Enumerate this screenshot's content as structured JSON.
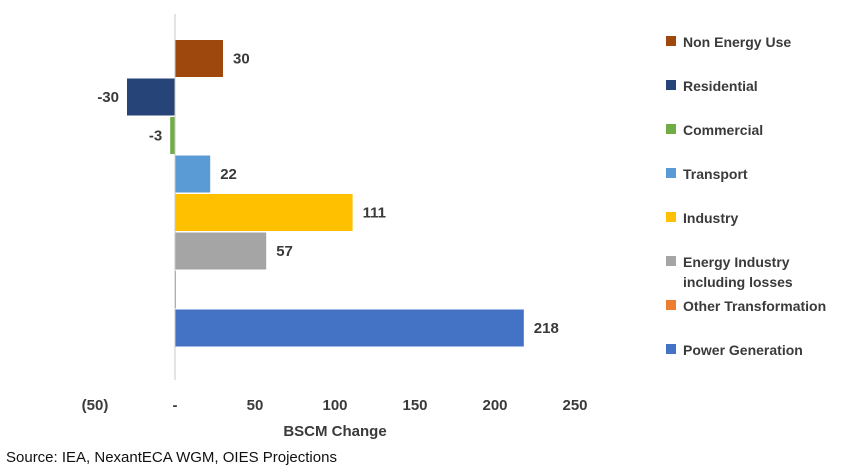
{
  "chart_data": {
    "type": "bar",
    "orientation": "horizontal",
    "title": "",
    "xlabel": "BSCM Change",
    "ylabel": "",
    "xlim": [
      -50,
      250
    ],
    "xticks": [
      {
        "value": -50,
        "label": "(50)"
      },
      {
        "value": 0,
        "label": "-"
      },
      {
        "value": 50,
        "label": "50"
      },
      {
        "value": 100,
        "label": "100"
      },
      {
        "value": 150,
        "label": "150"
      },
      {
        "value": 200,
        "label": "200"
      },
      {
        "value": 250,
        "label": "250"
      }
    ],
    "series": [
      {
        "name": "Non Energy Use",
        "value": 30,
        "label": "30",
        "color": "#9E480E"
      },
      {
        "name": "Residential",
        "value": -30,
        "label": "-30",
        "color": "#264478"
      },
      {
        "name": "Commercial",
        "value": -3,
        "label": "-3",
        "color": "#70AD47"
      },
      {
        "name": "Transport",
        "value": 22,
        "label": "22",
        "color": "#5B9BD5"
      },
      {
        "name": "Industry",
        "value": 111,
        "label": "111",
        "color": "#FFC000"
      },
      {
        "name": "Energy Industry\nincluding losses",
        "value": 57,
        "label": "57",
        "color": "#A5A5A5"
      },
      {
        "name": "Other Transformation",
        "value": 0.5,
        "label": "",
        "color": "#ED7D31"
      },
      {
        "name": "Power Generation",
        "value": 218,
        "label": "218",
        "color": "#4472C4"
      }
    ]
  },
  "source": "Source: IEA, NexantECA WGM, OIES Projections"
}
